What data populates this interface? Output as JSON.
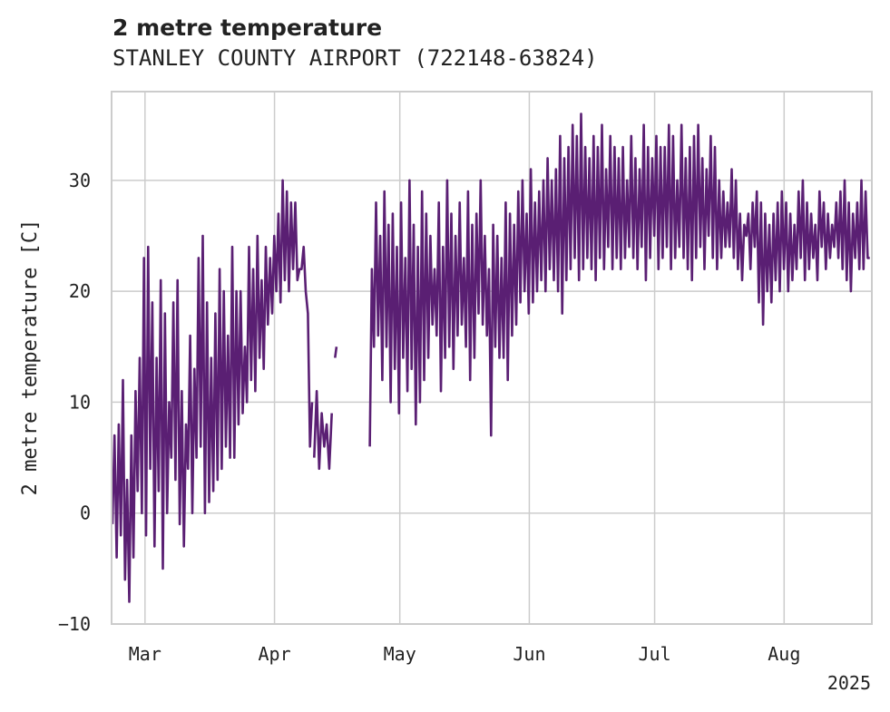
{
  "chart_data": {
    "type": "line",
    "title": "2 metre temperature",
    "subtitle": "STANLEY COUNTY AIRPORT (722148-63824)",
    "ylabel": "2 metre temperature [C]",
    "xlabel": "",
    "ylim": [
      -10,
      38
    ],
    "yticks": [
      -10,
      0,
      10,
      20,
      30
    ],
    "xlim_days": [
      -8,
      174
    ],
    "xticks": [
      {
        "label": "Mar",
        "day": 0
      },
      {
        "label": "Apr",
        "day": 31
      },
      {
        "label": "May",
        "day": 61
      },
      {
        "label": "Jun",
        "day": 92
      },
      {
        "label": "Jul",
        "day": 122
      },
      {
        "label": "Aug",
        "day": 153
      }
    ],
    "year_label": "2025",
    "grid": true,
    "line_color": "#5a1f73",
    "series": [
      {
        "name": "2 metre temperature",
        "segments": [
          {
            "start_day": -7.8,
            "end_day": 40.5,
            "lows": [
              -1,
              -4,
              -2,
              -6,
              -8,
              -4,
              2,
              0,
              -2,
              4,
              -3,
              2,
              -5,
              0,
              5,
              3,
              -1,
              -3,
              4,
              0,
              5,
              6,
              0,
              1,
              2,
              3,
              4,
              6,
              5,
              5,
              8,
              9,
              10,
              12,
              11,
              14,
              13,
              17,
              18,
              20,
              19,
              21,
              20,
              22,
              21,
              22,
              20,
              6
            ],
            "highs": [
              7,
              8,
              12,
              3,
              7,
              11,
              14,
              23,
              24,
              19,
              14,
              21,
              18,
              10,
              19,
              21,
              11,
              8,
              16,
              13,
              23,
              25,
              19,
              14,
              18,
              22,
              20,
              16,
              24,
              20,
              20,
              15,
              24,
              22,
              25,
              21,
              24,
              23,
              25,
              27,
              30,
              29,
              28,
              28,
              22,
              24,
              18,
              10
            ]
          },
          {
            "start_day": 40.5,
            "end_day": 45.3,
            "lows": [
              5,
              4,
              6,
              4
            ],
            "highs": [
              11,
              9,
              8,
              9
            ]
          },
          {
            "start_day": 45.5,
            "end_day": 46.2,
            "lows": [
              14
            ],
            "highs": [
              15
            ]
          },
          {
            "start_day": 53.8,
            "end_day": 174.0,
            "lows": [
              6,
              15,
              16,
              12,
              15,
              10,
              13,
              9,
              14,
              11,
              13,
              8,
              10,
              12,
              14,
              17,
              16,
              11,
              14,
              15,
              13,
              16,
              17,
              15,
              12,
              14,
              18,
              17,
              16,
              7,
              15,
              14,
              14,
              12,
              16,
              17,
              19,
              20,
              18,
              19,
              20,
              21,
              20,
              22,
              21,
              20,
              18,
              21,
              22,
              23,
              21,
              22,
              23,
              22,
              21,
              23,
              22,
              24,
              22,
              23,
              22,
              23,
              24,
              23,
              22,
              24,
              21,
              23,
              25,
              22,
              23,
              24,
              22,
              23,
              24,
              23,
              22,
              21,
              23,
              24,
              22,
              25,
              23,
              22,
              23,
              24,
              24,
              23,
              22,
              21,
              25,
              22,
              24,
              19,
              17,
              20,
              19,
              21,
              20,
              22,
              20,
              21,
              22,
              23,
              21,
              22,
              23,
              21,
              24,
              22,
              23,
              24,
              23,
              22,
              21,
              20,
              23,
              22,
              22,
              23
            ],
            "highs": [
              22,
              28,
              25,
              29,
              26,
              27,
              24,
              28,
              23,
              30,
              26,
              24,
              29,
              27,
              25,
              22,
              28,
              24,
              30,
              27,
              25,
              28,
              23,
              29,
              26,
              27,
              30,
              25,
              22,
              26,
              25,
              23,
              28,
              27,
              26,
              29,
              30,
              27,
              31,
              28,
              29,
              30,
              32,
              30,
              31,
              34,
              32,
              33,
              35,
              34,
              36,
              33,
              32,
              34,
              33,
              35,
              31,
              34,
              33,
              32,
              33,
              30,
              34,
              32,
              31,
              35,
              33,
              32,
              34,
              33,
              33,
              35,
              34,
              30,
              35,
              32,
              33,
              34,
              35,
              32,
              31,
              34,
              33,
              30,
              29,
              28,
              31,
              30,
              27,
              26,
              27,
              28,
              29,
              28,
              27,
              26,
              27,
              28,
              29,
              28,
              27,
              26,
              29,
              30,
              28,
              27,
              26,
              29,
              28,
              27,
              26,
              28,
              29,
              30,
              28,
              27,
              28,
              30,
              29,
              23
            ]
          }
        ]
      }
    ]
  }
}
